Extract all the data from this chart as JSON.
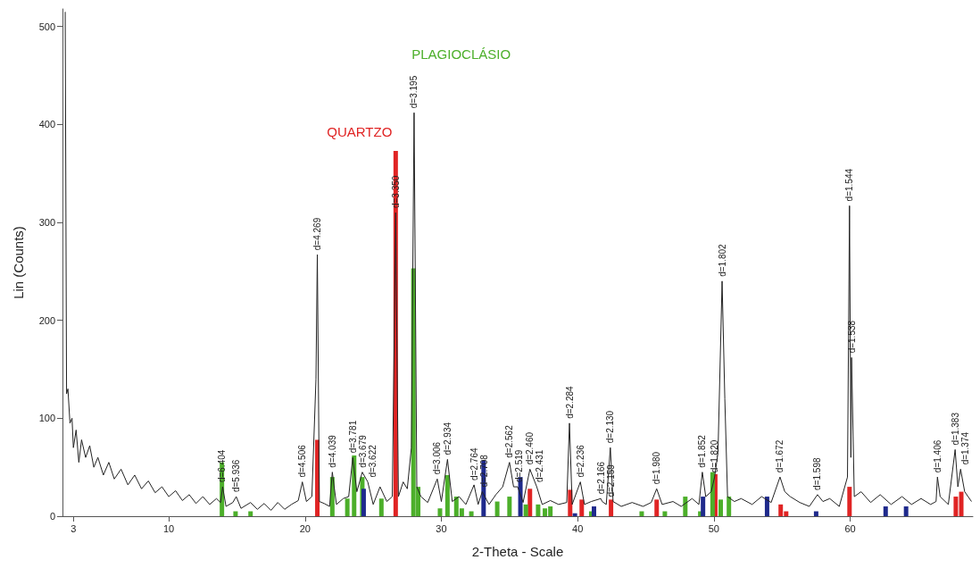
{
  "chart_data": {
    "type": "line",
    "xlabel": "2-Theta - Scale",
    "ylabel": "Lin (Counts)",
    "xlim": [
      2.2,
      69
    ],
    "ylim": [
      0,
      518
    ],
    "xticks": [
      3,
      10,
      20,
      30,
      40,
      50,
      60
    ],
    "yticks": [
      0,
      100,
      200,
      300,
      400,
      500
    ],
    "grid": false,
    "series": [
      {
        "color": "#222222",
        "x": [
          2.4,
          2.5,
          2.6,
          2.75,
          2.9,
          3.0,
          3.2,
          3.4,
          3.6,
          3.9,
          4.2,
          4.5,
          4.8,
          5.2,
          5.6,
          6.0,
          6.5,
          7.0,
          7.5,
          8.0,
          8.5,
          9.0,
          9.5,
          10.0,
          10.5,
          11.0,
          11.5,
          12.0,
          12.5,
          13.0,
          13.5,
          13.8,
          13.95,
          14.2,
          14.7,
          14.95,
          15.3,
          16.0,
          16.5,
          17.0,
          17.5,
          18.0,
          18.5,
          19.0,
          19.5,
          19.8,
          20.1,
          20.5,
          20.8,
          20.9,
          21.05,
          21.4,
          21.8,
          22.0,
          22.3,
          22.8,
          23.2,
          23.5,
          23.8,
          24.2,
          24.6,
          25.0,
          25.5,
          26.0,
          26.4,
          26.65,
          26.85,
          27.2,
          27.5,
          27.8,
          28.0,
          28.2,
          28.5,
          29.0,
          29.7,
          30.0,
          30.45,
          30.8,
          31.3,
          31.8,
          32.4,
          32.7,
          33.0,
          33.5,
          34.0,
          34.5,
          35.0,
          35.3,
          35.6,
          36.0,
          36.5,
          37.0,
          37.4,
          38.0,
          38.6,
          39.2,
          39.4,
          39.6,
          40.2,
          40.5,
          41.0,
          41.7,
          41.8,
          42.1,
          42.4,
          42.6,
          43.2,
          44.0,
          44.8,
          45.4,
          45.8,
          46.2,
          47.0,
          47.6,
          48.4,
          48.9,
          49.15,
          49.4,
          49.8,
          50.05,
          50.3,
          50.6,
          50.8,
          51.0,
          51.5,
          52.0,
          52.8,
          53.5,
          54.2,
          54.85,
          55.2,
          55.6,
          56.3,
          57.0,
          57.6,
          58.0,
          58.5,
          59.2,
          59.8,
          59.95,
          60.05,
          60.1,
          60.3,
          60.8,
          61.5,
          62.2,
          63.0,
          63.8,
          64.5,
          65.2,
          65.9,
          66.3,
          66.4,
          66.6,
          67.2,
          67.7,
          67.9,
          68.1,
          68.4,
          68.9
        ],
        "values": [
          515,
          125,
          130,
          95,
          100,
          70,
          88,
          55,
          78,
          60,
          72,
          50,
          60,
          42,
          55,
          38,
          48,
          32,
          42,
          28,
          36,
          24,
          30,
          20,
          26,
          16,
          22,
          13,
          20,
          12,
          18,
          14,
          30,
          10,
          14,
          20,
          8,
          14,
          7,
          13,
          6,
          14,
          7,
          12,
          16,
          35,
          15,
          20,
          140,
          267,
          15,
          13,
          10,
          45,
          12,
          18,
          20,
          60,
          25,
          45,
          35,
          12,
          30,
          15,
          20,
          310,
          20,
          35,
          28,
          70,
          412,
          30,
          20,
          14,
          38,
          15,
          58,
          15,
          20,
          12,
          32,
          12,
          25,
          12,
          22,
          30,
          55,
          30,
          30,
          14,
          48,
          30,
          12,
          16,
          12,
          14,
          95,
          12,
          35,
          12,
          15,
          18,
          15,
          12,
          70,
          15,
          10,
          14,
          10,
          14,
          28,
          12,
          15,
          10,
          18,
          12,
          45,
          20,
          25,
          40,
          65,
          240,
          120,
          20,
          15,
          18,
          12,
          20,
          14,
          40,
          25,
          20,
          14,
          10,
          22,
          15,
          18,
          10,
          40,
          317,
          60,
          162,
          20,
          25,
          14,
          22,
          12,
          20,
          12,
          18,
          12,
          15,
          40,
          20,
          12,
          68,
          30,
          48,
          25,
          15
        ]
      },
      {
        "type": "bar",
        "name": "QUARTZO",
        "color": "#e02424",
        "x": [
          20.9,
          26.65,
          36.5,
          39.45,
          40.3,
          42.45,
          45.8,
          50.1,
          54.9,
          55.3,
          59.95,
          67.75,
          68.15
        ],
        "values": [
          78,
          373,
          28,
          27,
          17,
          17,
          17,
          43,
          12,
          5,
          30,
          20,
          25
        ]
      },
      {
        "type": "bar",
        "name": "PLAGIOCLÁSIO",
        "color": "#4caf2a",
        "x": [
          13.9,
          14.9,
          16.0,
          22.0,
          23.1,
          23.6,
          24.2,
          25.6,
          27.95,
          28.3,
          29.9,
          30.45,
          31.1,
          31.5,
          32.2,
          34.1,
          35.0,
          35.9,
          36.2,
          37.1,
          37.6,
          38.0,
          41.0,
          44.7,
          46.4,
          47.9,
          49.0,
          49.9,
          50.5,
          51.1
        ],
        "values": [
          55,
          5,
          5,
          40,
          18,
          62,
          40,
          18,
          253,
          30,
          8,
          42,
          20,
          8,
          5,
          15,
          20,
          null,
          12,
          12,
          8,
          10,
          5,
          5,
          5,
          20,
          5,
          45,
          17,
          20
        ]
      },
      {
        "type": "bar",
        "color": "#1f2a8c",
        "x": [
          24.3,
          33.1,
          35.8,
          39.8,
          41.2,
          49.2,
          53.9,
          57.5,
          62.6,
          64.1
        ],
        "values": [
          28,
          57,
          40,
          3,
          10,
          20,
          20,
          5,
          10,
          10
        ]
      }
    ],
    "annotations": [
      {
        "text": "d=6.404",
        "x": 13.9,
        "y": 30
      },
      {
        "text": "d=5.936",
        "x": 14.95,
        "y": 20
      },
      {
        "text": "d=4.506",
        "x": 19.8,
        "y": 35
      },
      {
        "text": "d=4.269",
        "x": 20.9,
        "y": 267
      },
      {
        "text": "d=4.039",
        "x": 22.0,
        "y": 45
      },
      {
        "text": "d=3.781",
        "x": 23.5,
        "y": 60
      },
      {
        "text": "d=3.679",
        "x": 24.2,
        "y": 45
      },
      {
        "text": "d=3.622",
        "x": 24.6,
        "y": 35
      },
      {
        "text": "d=3.350",
        "x": 26.65,
        "y": 310
      },
      {
        "text": "d=3.195",
        "x": 28.0,
        "y": 412
      },
      {
        "text": "d=3.006",
        "x": 29.7,
        "y": 38
      },
      {
        "text": "d=2.934",
        "x": 30.45,
        "y": 58
      },
      {
        "text": "d=2.764",
        "x": 32.4,
        "y": 32
      },
      {
        "text": "d=2.708",
        "x": 33.0,
        "y": 25
      },
      {
        "text": "d=2.562",
        "x": 35.0,
        "y": 55
      },
      {
        "text": "d=2.519",
        "x": 35.6,
        "y": 30
      },
      {
        "text": "d=2.460",
        "x": 36.5,
        "y": 48
      },
      {
        "text": "d=2.431",
        "x": 37.0,
        "y": 30
      },
      {
        "text": "d=2.284",
        "x": 39.4,
        "y": 95
      },
      {
        "text": "d=2.236",
        "x": 40.2,
        "y": 35
      },
      {
        "text": "d=2.166",
        "x": 41.7,
        "y": 18
      },
      {
        "text": "d=2.159",
        "x": 41.8,
        "y": 15
      },
      {
        "text": "d=2.130",
        "x": 42.4,
        "y": 70
      },
      {
        "text": "d=1.980",
        "x": 45.8,
        "y": 28
      },
      {
        "text": "d=1.852",
        "x": 49.15,
        "y": 45
      },
      {
        "text": "d=1.820",
        "x": 50.05,
        "y": 40
      },
      {
        "text": "d=1.802",
        "x": 50.6,
        "y": 240
      },
      {
        "text": "d=1.672",
        "x": 54.85,
        "y": 40
      },
      {
        "text": "d=1.598",
        "x": 57.6,
        "y": 22
      },
      {
        "text": "d=1.544",
        "x": 59.95,
        "y": 317
      },
      {
        "text": "d=1.538",
        "x": 60.1,
        "y": 162
      },
      {
        "text": "d=1.406",
        "x": 66.4,
        "y": 40
      },
      {
        "text": "d=1.383",
        "x": 67.7,
        "y": 68
      },
      {
        "text": "d=1.374",
        "x": 68.1,
        "y": 48
      }
    ]
  }
}
